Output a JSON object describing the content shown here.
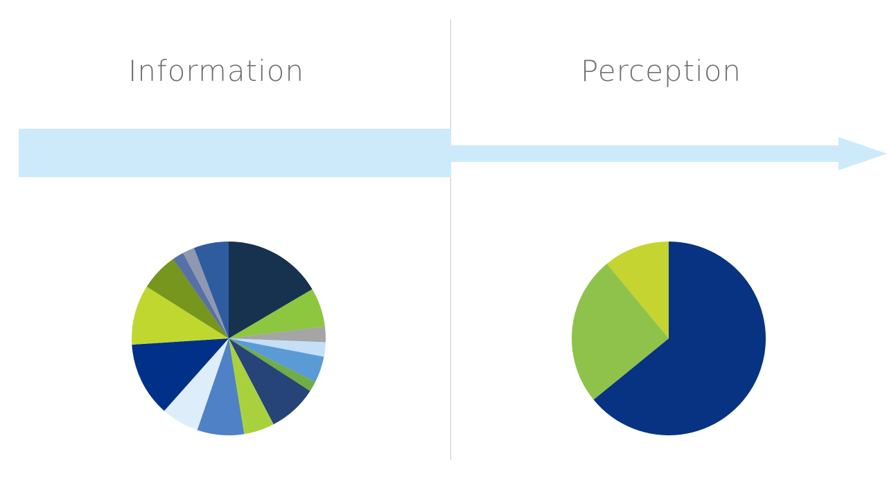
{
  "chart_data": [
    {
      "type": "pie",
      "title": "Information",
      "values": [
        16.5,
        6.5,
        2.6,
        2.4,
        4.4,
        1.7,
        8.2,
        5.1,
        7.8,
        6.3,
        12.4,
        10,
        6.3,
        1.9,
        2,
        5.8
      ],
      "colors": [
        "#16324f",
        "#8dc63f",
        "#a5a5a5",
        "#c5dff8",
        "#5b9bd5",
        "#70ad47",
        "#264478",
        "#a9d13e",
        "#4f81c7",
        "#ddeefa",
        "#003087",
        "#c0d730",
        "#76961e",
        "#5670a8",
        "#8e98b0",
        "#2e5c9e"
      ]
    },
    {
      "type": "pie",
      "title": "Perception",
      "values": [
        64.1,
        24.9,
        11
      ],
      "colors": [
        "#073382",
        "#8fc24a",
        "#c5d430"
      ]
    }
  ]
}
